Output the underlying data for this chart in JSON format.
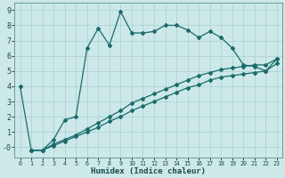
{
  "xlabel": "Humidex (Indice chaleur)",
  "xlim": [
    -0.5,
    23.5
  ],
  "ylim": [
    -0.7,
    9.5
  ],
  "bg_color": "#cce8e8",
  "grid_color": "#add4d4",
  "line_color": "#1a6b6b",
  "series": [
    {
      "x": [
        0,
        1,
        2,
        3,
        4,
        5,
        6,
        7,
        8,
        9,
        10,
        11,
        12,
        13,
        14,
        15,
        16,
        17,
        18,
        19,
        20,
        21,
        22,
        23
      ],
      "y": [
        4.0,
        -0.2,
        -0.2,
        0.5,
        1.8,
        2.0,
        6.5,
        7.8,
        6.7,
        8.9,
        7.5,
        7.5,
        7.6,
        8.0,
        8.0,
        7.7,
        7.2,
        7.6,
        7.2,
        6.5,
        5.4,
        5.3,
        5.0,
        5.8
      ]
    },
    {
      "x": [
        1,
        2,
        3,
        4,
        5,
        6,
        7,
        8,
        9,
        10,
        11,
        12,
        13,
        14,
        15,
        16,
        17,
        18,
        19,
        20,
        21,
        22,
        23
      ],
      "y": [
        -0.2,
        -0.2,
        0.2,
        0.5,
        0.8,
        1.2,
        1.6,
        2.0,
        2.4,
        2.9,
        3.2,
        3.5,
        3.8,
        4.1,
        4.4,
        4.7,
        4.9,
        5.1,
        5.2,
        5.3,
        5.4,
        5.4,
        5.8
      ]
    },
    {
      "x": [
        1,
        2,
        3,
        4,
        5,
        6,
        7,
        8,
        9,
        10,
        11,
        12,
        13,
        14,
        15,
        16,
        17,
        18,
        19,
        20,
        21,
        22,
        23
      ],
      "y": [
        -0.2,
        -0.2,
        0.1,
        0.4,
        0.7,
        1.0,
        1.3,
        1.7,
        2.0,
        2.4,
        2.7,
        3.0,
        3.3,
        3.6,
        3.9,
        4.1,
        4.4,
        4.6,
        4.7,
        4.8,
        4.9,
        5.0,
        5.5
      ]
    }
  ],
  "yticks": [
    0,
    1,
    2,
    3,
    4,
    5,
    6,
    7,
    8,
    9
  ],
  "ytick_labels": [
    "-0",
    "1",
    "2",
    "3",
    "4",
    "5",
    "6",
    "7",
    "8",
    "9"
  ],
  "xticks": [
    0,
    1,
    2,
    3,
    4,
    5,
    6,
    7,
    8,
    9,
    10,
    11,
    12,
    13,
    14,
    15,
    16,
    17,
    18,
    19,
    20,
    21,
    22,
    23
  ]
}
